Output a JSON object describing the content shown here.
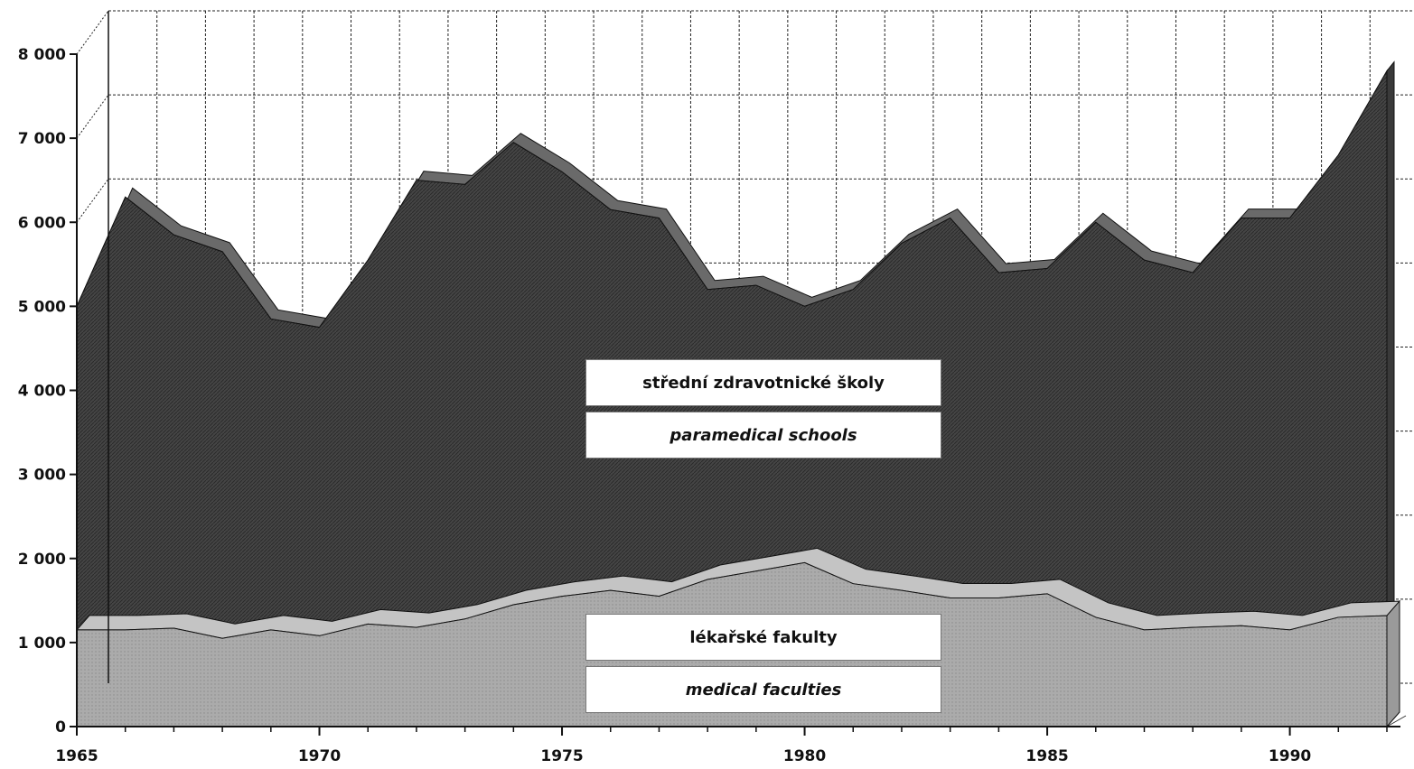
{
  "chart_data": {
    "type": "area",
    "x": [
      1965,
      1966,
      1967,
      1968,
      1969,
      1970,
      1971,
      1972,
      1973,
      1974,
      1975,
      1976,
      1977,
      1978,
      1979,
      1980,
      1981,
      1982,
      1983,
      1984,
      1985,
      1986,
      1987,
      1988,
      1989,
      1990,
      1991,
      1992
    ],
    "series": [
      {
        "name": "lékařské fakulty / medical faculties",
        "values": [
          1150,
          1150,
          1170,
          1050,
          1150,
          1080,
          1220,
          1180,
          1280,
          1450,
          1550,
          1620,
          1550,
          1750,
          1850,
          1950,
          1700,
          1620,
          1530,
          1530,
          1580,
          1300,
          1150,
          1180,
          1200,
          1150,
          1300,
          1320
        ],
        "color": "#a9a9a9"
      },
      {
        "name": "střední zdravotnické školy / paramedical schools",
        "values": [
          5000,
          6300,
          5850,
          5650,
          4850,
          4750,
          5550,
          6500,
          6450,
          6950,
          6600,
          6150,
          6050,
          5200,
          5250,
          5000,
          5200,
          5750,
          6050,
          5400,
          5450,
          6000,
          5550,
          5400,
          6050,
          6050,
          6800,
          7800
        ],
        "color": "#4a4a4a"
      }
    ],
    "y_ticks": [
      "0",
      "1 000",
      "2 000",
      "3 000",
      "4 000",
      "5 000",
      "6 000",
      "7 000",
      "8 000"
    ],
    "x_tick_labels": [
      "1965",
      "1970",
      "1975",
      "1980",
      "1985",
      "1990"
    ],
    "ylim": [
      0,
      8000
    ],
    "grid": true,
    "stacked": false
  },
  "labels": {
    "paramedical_cz": "střední zdravotnické školy",
    "paramedical_en": "paramedical schools",
    "medical_cz": "lékařské fakulty",
    "medical_en": "medical faculties"
  }
}
